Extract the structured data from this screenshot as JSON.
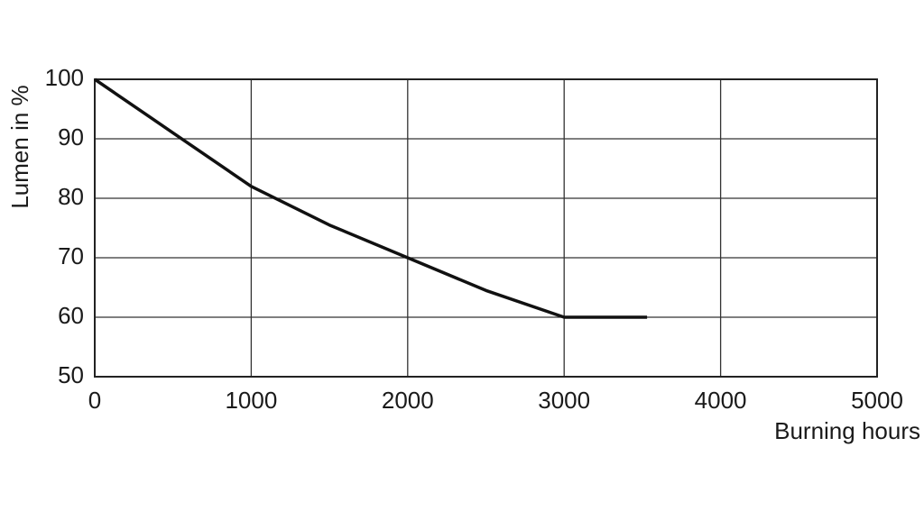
{
  "chart_data": {
    "type": "line",
    "x_label": "Burning hours",
    "y_label": "Lumen in %",
    "x": [
      0,
      500,
      1000,
      1500,
      2000,
      2500,
      3000,
      3530
    ],
    "series": [
      {
        "color": "#111111",
        "values": [
          100,
          91,
          82,
          75.5,
          70,
          64.5,
          60,
          60
        ]
      }
    ],
    "xlim": [
      0,
      5000
    ],
    "xticks": [
      0,
      1000,
      2000,
      3000,
      4000,
      5000
    ],
    "ylim": [
      50,
      100
    ],
    "yticks": [
      50,
      60,
      70,
      80,
      90,
      100
    ],
    "grid": true
  }
}
